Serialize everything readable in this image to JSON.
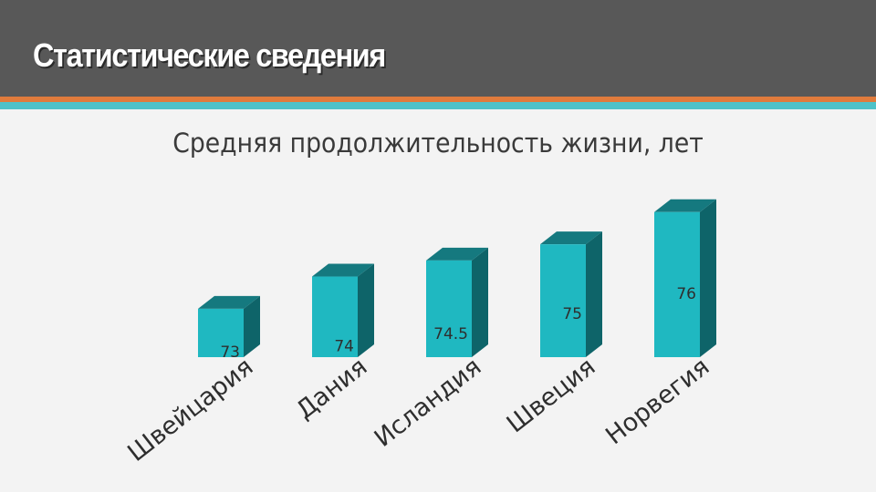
{
  "header": {
    "title": "Статистические сведения"
  },
  "colors": {
    "header_bg": "#585858",
    "accent_orange": "#e07b3c",
    "accent_teal": "#4ec2c8",
    "bar_front": "#1fb8c1",
    "bar_top": "#15797f",
    "bar_side": "#0e6469"
  },
  "chart_data": {
    "type": "bar",
    "title": "Средняя продолжительность жизни, лет",
    "categories": [
      "Швейцария",
      "Дания",
      "Исландия",
      "Швеция",
      "Норвегия"
    ],
    "values": [
      73,
      74,
      74.5,
      75,
      76
    ],
    "value_labels": [
      "73",
      "74",
      "74.5",
      "75",
      "76"
    ],
    "ylim": [
      71.5,
      76.7
    ],
    "grid": false,
    "legend": "none"
  }
}
